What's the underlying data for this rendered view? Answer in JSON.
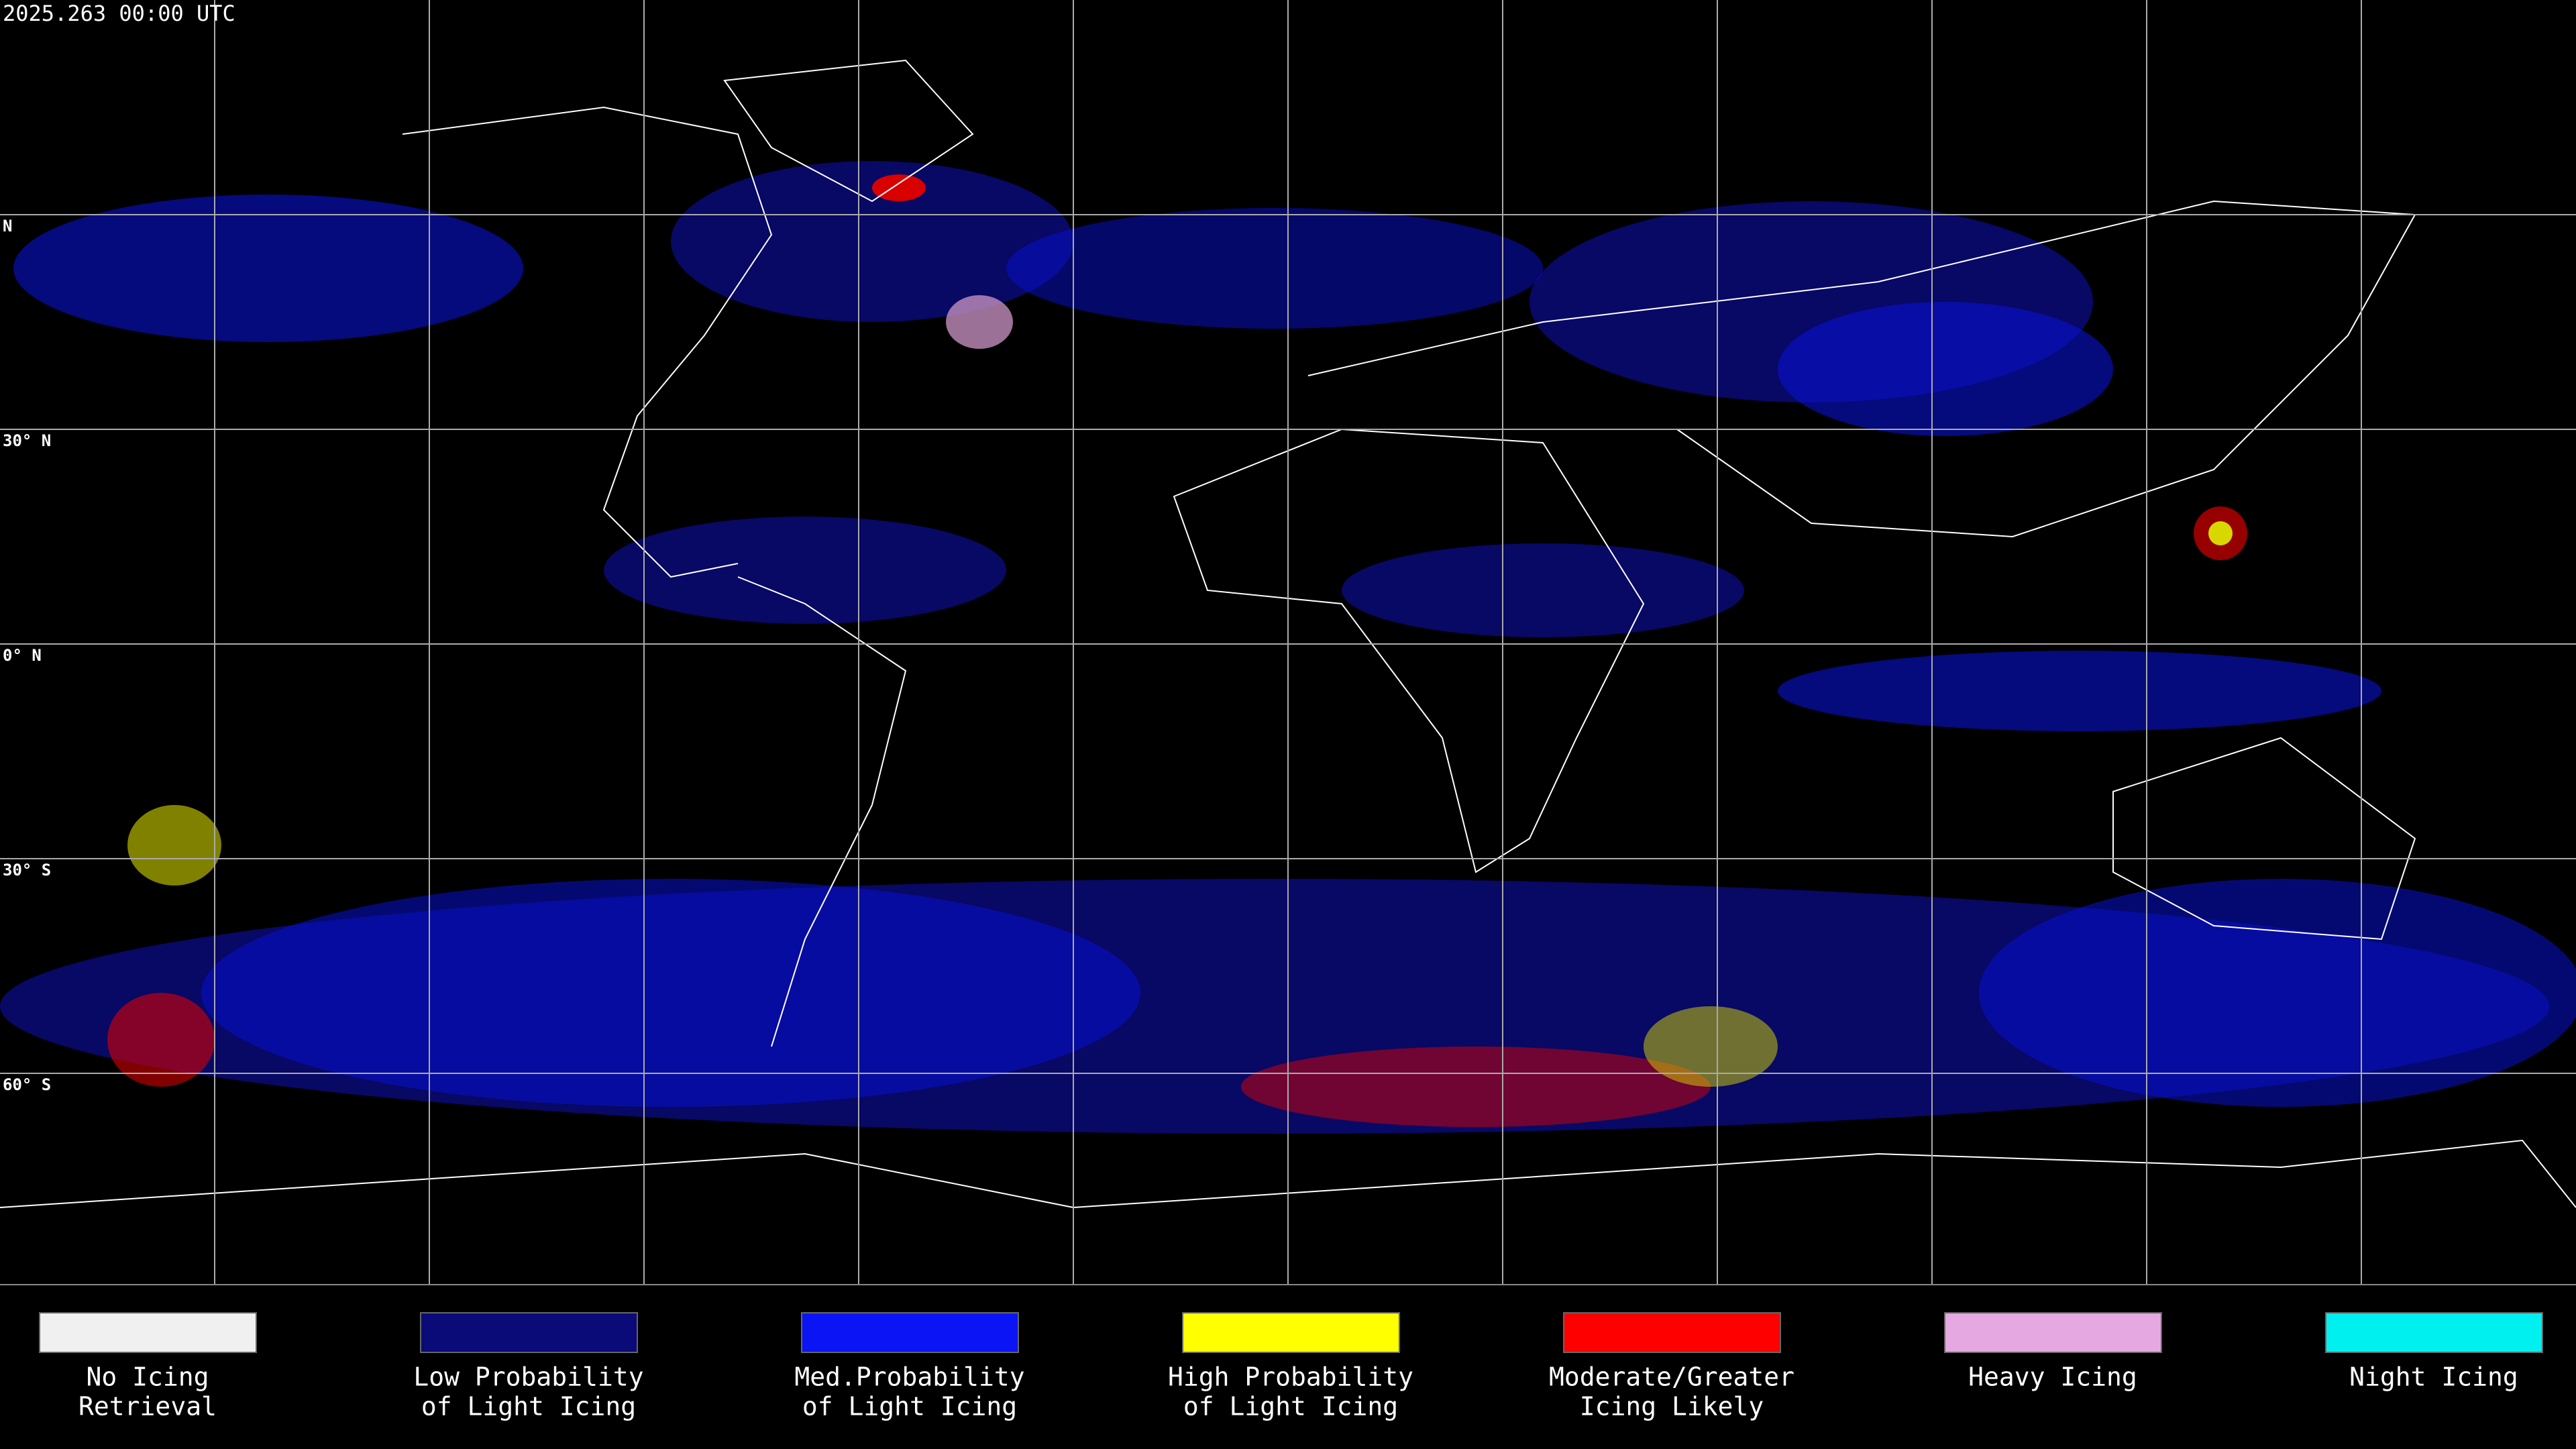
{
  "header": {
    "timestamp": "2025.263 00:00 UTC"
  },
  "map": {
    "lat_labels": [
      "N",
      "30° N",
      "0° N",
      "30° S",
      "60° S"
    ]
  },
  "legend": {
    "items": [
      {
        "lines": [
          "No Icing",
          "Retrieval"
        ],
        "color": "#f0f0f0"
      },
      {
        "lines": [
          "Low Probability",
          "of Light Icing"
        ],
        "color": "#0a0a78"
      },
      {
        "lines": [
          "Med.Probability",
          "of Light Icing"
        ],
        "color": "#0a14f5"
      },
      {
        "lines": [
          "High Probability",
          "of Light Icing"
        ],
        "color": "#ffff00"
      },
      {
        "lines": [
          "Moderate/Greater",
          "Icing Likely"
        ],
        "color": "#ff0000"
      },
      {
        "lines": [
          "Heavy Icing"
        ],
        "color": "#e6a8e0"
      },
      {
        "lines": [
          "Night Icing"
        ],
        "color": "#00f0f0"
      }
    ]
  }
}
